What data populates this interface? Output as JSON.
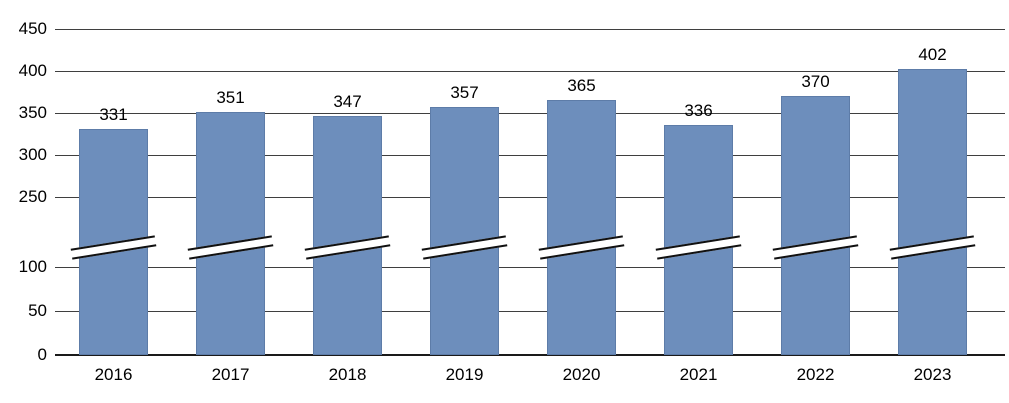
{
  "chart_data": {
    "type": "bar",
    "title": "",
    "xlabel": "",
    "ylabel": "",
    "categories": [
      "2016",
      "2017",
      "2018",
      "2019",
      "2020",
      "2021",
      "2022",
      "2023"
    ],
    "values": [
      331,
      351,
      347,
      357,
      365,
      336,
      370,
      402
    ],
    "y_ticks": [
      450,
      400,
      350,
      300,
      250,
      100,
      50,
      0
    ],
    "axis_break": {
      "from": 100,
      "to": 250
    },
    "ylim": [
      0,
      450
    ],
    "grid": true,
    "legend": "none",
    "bar_color": "#6d8ebc",
    "bar_border_color": "#5d7ca8",
    "gridline_color": "#3f3f3f",
    "text_color": "#000000"
  }
}
